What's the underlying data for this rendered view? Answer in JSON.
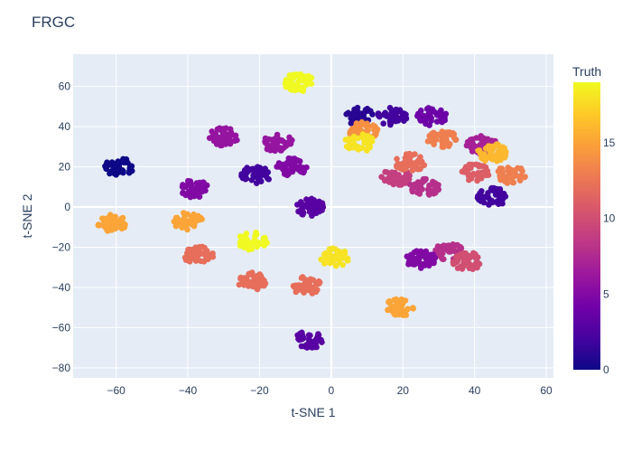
{
  "chart_data": {
    "type": "scatter",
    "title": "FRGC",
    "xlabel": "t-SNE 1",
    "ylabel": "t-SNE 2",
    "xlim": [
      -72,
      62
    ],
    "ylim": [
      -85,
      76
    ],
    "x_ticks": [
      -60,
      -40,
      -20,
      0,
      20,
      40,
      60
    ],
    "y_ticks": [
      -80,
      -60,
      -40,
      -20,
      0,
      20,
      40,
      60
    ],
    "grid": true,
    "colorbar": {
      "title": "Truth",
      "range": [
        0,
        19
      ],
      "ticks": [
        0,
        5,
        10,
        15
      ],
      "colorscale": "plasma"
    },
    "clusters": [
      {
        "x": -59,
        "y": 20,
        "truth": 0
      },
      {
        "x": -9,
        "y": 62,
        "truth": 19
      },
      {
        "x": -30,
        "y": 35,
        "truth": 6
      },
      {
        "x": -15,
        "y": 32,
        "truth": 6
      },
      {
        "x": -21,
        "y": 16,
        "truth": 2
      },
      {
        "x": -38,
        "y": 9,
        "truth": 5
      },
      {
        "x": -11,
        "y": 20,
        "truth": 5
      },
      {
        "x": -61,
        "y": -8,
        "truth": 15
      },
      {
        "x": -40,
        "y": -7,
        "truth": 15
      },
      {
        "x": -6,
        "y": 0,
        "truth": 3
      },
      {
        "x": -22,
        "y": -17,
        "truth": 19
      },
      {
        "x": -37,
        "y": -24,
        "truth": 12
      },
      {
        "x": -22,
        "y": -37,
        "truth": 12
      },
      {
        "x": -7,
        "y": -39,
        "truth": 12
      },
      {
        "x": 1,
        "y": -25,
        "truth": 18
      },
      {
        "x": -6,
        "y": -66,
        "truth": 3
      },
      {
        "x": 19,
        "y": -50,
        "truth": 15
      },
      {
        "x": 8,
        "y": 45,
        "truth": 1
      },
      {
        "x": 17,
        "y": 45,
        "truth": 2
      },
      {
        "x": 28,
        "y": 45,
        "truth": 4
      },
      {
        "x": 9,
        "y": 38,
        "truth": 14
      },
      {
        "x": 8,
        "y": 32,
        "truth": 18
      },
      {
        "x": 31,
        "y": 34,
        "truth": 13
      },
      {
        "x": 42,
        "y": 31,
        "truth": 7
      },
      {
        "x": 45,
        "y": 27,
        "truth": 16
      },
      {
        "x": 50,
        "y": 16,
        "truth": 13
      },
      {
        "x": 45,
        "y": 5,
        "truth": 2
      },
      {
        "x": 18,
        "y": 15,
        "truth": 9
      },
      {
        "x": 26,
        "y": 10,
        "truth": 8
      },
      {
        "x": 40,
        "y": 17,
        "truth": 11
      },
      {
        "x": 22,
        "y": 22,
        "truth": 12
      },
      {
        "x": 33,
        "y": -22,
        "truth": 8
      },
      {
        "x": 38,
        "y": -27,
        "truth": 10
      },
      {
        "x": 25,
        "y": -26,
        "truth": 5
      }
    ]
  }
}
